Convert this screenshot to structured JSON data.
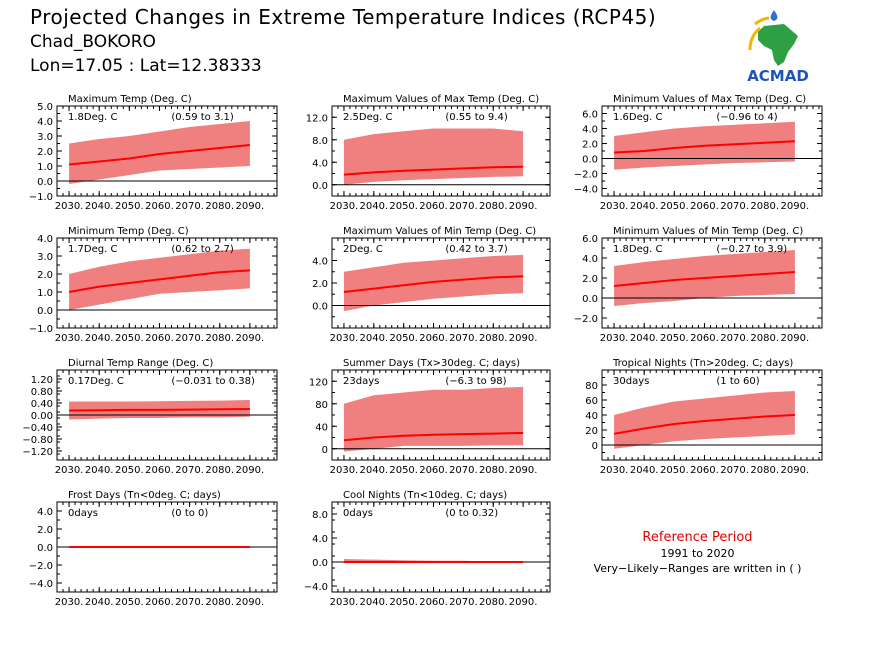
{
  "header": {
    "title": "Projected Changes in Extreme Temperature Indices (RCP45)",
    "station": "Chad_BOKORO",
    "location": "Lon=17.05 : Lat=12.38333"
  },
  "logo": {
    "text": "ACMAD",
    "icon": "africa-map-logo"
  },
  "reference": {
    "title": "Reference Period",
    "years": "1991 to 2020",
    "note": "Very−Likely−Ranges are written in ( )"
  },
  "colors": {
    "band": "#f08080",
    "line": "#ff0000",
    "zero_line": "#000000",
    "reference_title": "#e00000"
  },
  "chart_data": [
    {
      "type": "area",
      "title": "Maximum Temp (Deg. C)",
      "value_label": "1.8Deg. C",
      "range_label": "(0.59 to 3.1)",
      "x": [
        2030,
        2040,
        2050,
        2060,
        2070,
        2080,
        2090
      ],
      "xlim": [
        2026,
        2099
      ],
      "yticks": [
        "−1.0",
        "0.0",
        "1.0",
        "2.0",
        "3.0",
        "4.0",
        "5.0"
      ],
      "ylim": [
        -1,
        5
      ],
      "series": [
        {
          "values": [
            1.1,
            1.3,
            1.5,
            1.8,
            2.0,
            2.2,
            2.4
          ]
        },
        {
          "values": [
            -0.2,
            0.1,
            0.4,
            0.7,
            0.8,
            0.9,
            1.0
          ]
        },
        {
          "values": [
            2.5,
            2.8,
            3.0,
            3.3,
            3.6,
            3.8,
            4.0
          ]
        }
      ]
    },
    {
      "type": "area",
      "title": "Maximum Values of Max Temp (Deg. C)",
      "value_label": "2.5Deg. C",
      "range_label": "(0.55 to 9.4)",
      "x": [
        2030,
        2040,
        2050,
        2060,
        2070,
        2080,
        2090
      ],
      "xlim": [
        2026,
        2099
      ],
      "yticks": [
        "0.0",
        "4.0",
        "8.0",
        "12.0"
      ],
      "ylim": [
        -2,
        14
      ],
      "series": [
        {
          "values": [
            1.8,
            2.2,
            2.5,
            2.7,
            2.9,
            3.1,
            3.2
          ]
        },
        {
          "values": [
            0.0,
            0.5,
            0.8,
            1.0,
            1.2,
            1.4,
            1.5
          ]
        },
        {
          "values": [
            8.0,
            9.0,
            9.5,
            10.0,
            10.0,
            10.0,
            9.5
          ]
        }
      ]
    },
    {
      "type": "area",
      "title": "Minimum Values of Max Temp (Deg. C)",
      "value_label": "1.6Deg. C",
      "range_label": "(−0.96 to 4)",
      "x": [
        2030,
        2040,
        2050,
        2060,
        2070,
        2080,
        2090
      ],
      "xlim": [
        2026,
        2099
      ],
      "yticks": [
        "−4.0",
        "−2.0",
        "0.0",
        "2.0",
        "4.0",
        "6.0"
      ],
      "ylim": [
        -5,
        7
      ],
      "series": [
        {
          "values": [
            0.8,
            1.0,
            1.4,
            1.7,
            1.9,
            2.1,
            2.3
          ]
        },
        {
          "values": [
            -1.5,
            -1.2,
            -1.0,
            -0.8,
            -0.6,
            -0.5,
            -0.4
          ]
        },
        {
          "values": [
            3.0,
            3.5,
            4.0,
            4.3,
            4.5,
            4.7,
            4.9
          ]
        }
      ]
    },
    {
      "type": "area",
      "title": "Minimum Temp (Deg. C)",
      "value_label": "1.7Deg. C",
      "range_label": "(0.62 to 2.7)",
      "x": [
        2030,
        2040,
        2050,
        2060,
        2070,
        2080,
        2090
      ],
      "xlim": [
        2026,
        2099
      ],
      "yticks": [
        "−1.0",
        "0.0",
        "1.0",
        "2.0",
        "3.0",
        "4.0"
      ],
      "ylim": [
        -1,
        4
      ],
      "series": [
        {
          "values": [
            1.0,
            1.3,
            1.5,
            1.7,
            1.9,
            2.1,
            2.2
          ]
        },
        {
          "values": [
            0.0,
            0.3,
            0.6,
            0.9,
            1.0,
            1.1,
            1.2
          ]
        },
        {
          "values": [
            2.0,
            2.4,
            2.7,
            2.9,
            3.1,
            3.3,
            3.4
          ]
        }
      ]
    },
    {
      "type": "area",
      "title": "Maximum Values of Min Temp (Deg. C)",
      "value_label": "2Deg. C",
      "range_label": "(0.42 to 3.7)",
      "x": [
        2030,
        2040,
        2050,
        2060,
        2070,
        2080,
        2090
      ],
      "xlim": [
        2026,
        2099
      ],
      "yticks": [
        "0.0",
        "2.0",
        "4.0"
      ],
      "ylim": [
        -2,
        6
      ],
      "series": [
        {
          "values": [
            1.2,
            1.5,
            1.8,
            2.1,
            2.3,
            2.5,
            2.6
          ]
        },
        {
          "values": [
            -0.5,
            0.0,
            0.3,
            0.6,
            0.8,
            1.0,
            1.1
          ]
        },
        {
          "values": [
            3.0,
            3.4,
            3.8,
            4.0,
            4.2,
            4.4,
            4.5
          ]
        }
      ]
    },
    {
      "type": "area",
      "title": "Minimum Values of Min Temp (Deg. C)",
      "value_label": "1.8Deg. C",
      "range_label": "(−0.27 to 3.9)",
      "x": [
        2030,
        2040,
        2050,
        2060,
        2070,
        2080,
        2090
      ],
      "xlim": [
        2026,
        2099
      ],
      "yticks": [
        "−2.0",
        "0.0",
        "2.0",
        "4.0",
        "6.0"
      ],
      "ylim": [
        -3,
        6
      ],
      "series": [
        {
          "values": [
            1.2,
            1.5,
            1.8,
            2.0,
            2.2,
            2.4,
            2.6
          ]
        },
        {
          "values": [
            -0.8,
            -0.5,
            -0.3,
            0.0,
            0.2,
            0.3,
            0.4
          ]
        },
        {
          "values": [
            3.2,
            3.6,
            3.9,
            4.2,
            4.4,
            4.6,
            4.8
          ]
        }
      ]
    },
    {
      "type": "area",
      "title": "Diurnal Temp Range (Deg. C)",
      "value_label": "0.17Deg. C",
      "range_label": "(−0.031 to 0.38)",
      "x": [
        2030,
        2040,
        2050,
        2060,
        2070,
        2080,
        2090
      ],
      "xlim": [
        2026,
        2099
      ],
      "yticks": [
        "−1.20",
        "−0.80",
        "−0.40",
        "0.00",
        "0.40",
        "0.80",
        "1.20"
      ],
      "ylim": [
        -1.5,
        1.5
      ],
      "series": [
        {
          "values": [
            0.15,
            0.16,
            0.17,
            0.17,
            0.18,
            0.19,
            0.2
          ]
        },
        {
          "values": [
            -0.15,
            -0.12,
            -0.1,
            -0.1,
            -0.08,
            -0.08,
            -0.06
          ]
        },
        {
          "values": [
            0.45,
            0.45,
            0.45,
            0.46,
            0.47,
            0.48,
            0.5
          ]
        }
      ]
    },
    {
      "type": "area",
      "title": "Summer Days (Tx>30deg. C; days)",
      "value_label": "23days",
      "range_label": "(−6.3 to 98)",
      "x": [
        2030,
        2040,
        2050,
        2060,
        2070,
        2080,
        2090
      ],
      "xlim": [
        2026,
        2099
      ],
      "yticks": [
        "0",
        "40",
        "80",
        "120"
      ],
      "ylim": [
        -20,
        140
      ],
      "series": [
        {
          "values": [
            15,
            20,
            23,
            25,
            26,
            27,
            28
          ]
        },
        {
          "values": [
            -5,
            0,
            5,
            5,
            5,
            6,
            6
          ]
        },
        {
          "values": [
            80,
            95,
            100,
            105,
            105,
            108,
            110
          ]
        }
      ]
    },
    {
      "type": "area",
      "title": "Tropical Nights (Tn>20deg. C; days)",
      "value_label": "30days",
      "range_label": "(1 to 60)",
      "x": [
        2030,
        2040,
        2050,
        2060,
        2070,
        2080,
        2090
      ],
      "xlim": [
        2026,
        2099
      ],
      "yticks": [
        "0",
        "20",
        "40",
        "60",
        "80"
      ],
      "ylim": [
        -20,
        100
      ],
      "series": [
        {
          "values": [
            15,
            22,
            28,
            32,
            35,
            38,
            40
          ]
        },
        {
          "values": [
            -5,
            0,
            5,
            8,
            10,
            12,
            14
          ]
        },
        {
          "values": [
            40,
            50,
            58,
            62,
            66,
            70,
            72
          ]
        }
      ]
    },
    {
      "type": "area",
      "title": "Frost Days (Tn<0deg. C; days)",
      "value_label": "0days",
      "range_label": "(0 to 0)",
      "x": [
        2030,
        2040,
        2050,
        2060,
        2070,
        2080,
        2090
      ],
      "xlim": [
        2026,
        2099
      ],
      "yticks": [
        "−4.0",
        "−2.0",
        "0.0",
        "2.0",
        "4.0"
      ],
      "ylim": [
        -5,
        5
      ],
      "series": [
        {
          "values": [
            0,
            0,
            0,
            0,
            0,
            0,
            0
          ]
        },
        {
          "values": [
            0,
            0,
            0,
            0,
            0,
            0,
            0
          ]
        },
        {
          "values": [
            0,
            0,
            0,
            0,
            0,
            0,
            0
          ]
        }
      ]
    },
    {
      "type": "area",
      "title": "Cool Nights (Tn<10deg. C; days)",
      "value_label": "0days",
      "range_label": "(0 to 0.32)",
      "x": [
        2030,
        2040,
        2050,
        2060,
        2070,
        2080,
        2090
      ],
      "xlim": [
        2026,
        2099
      ],
      "yticks": [
        "−4.0",
        "0.0",
        "4.0",
        "8.0"
      ],
      "ylim": [
        -5,
        10
      ],
      "series": [
        {
          "values": [
            0,
            0,
            0,
            0,
            0,
            0,
            0
          ]
        },
        {
          "values": [
            0,
            0,
            0,
            0,
            0,
            0,
            0
          ]
        },
        {
          "values": [
            0.5,
            0.4,
            0.3,
            0.2,
            0.2,
            0.1,
            0.1
          ]
        }
      ]
    }
  ]
}
